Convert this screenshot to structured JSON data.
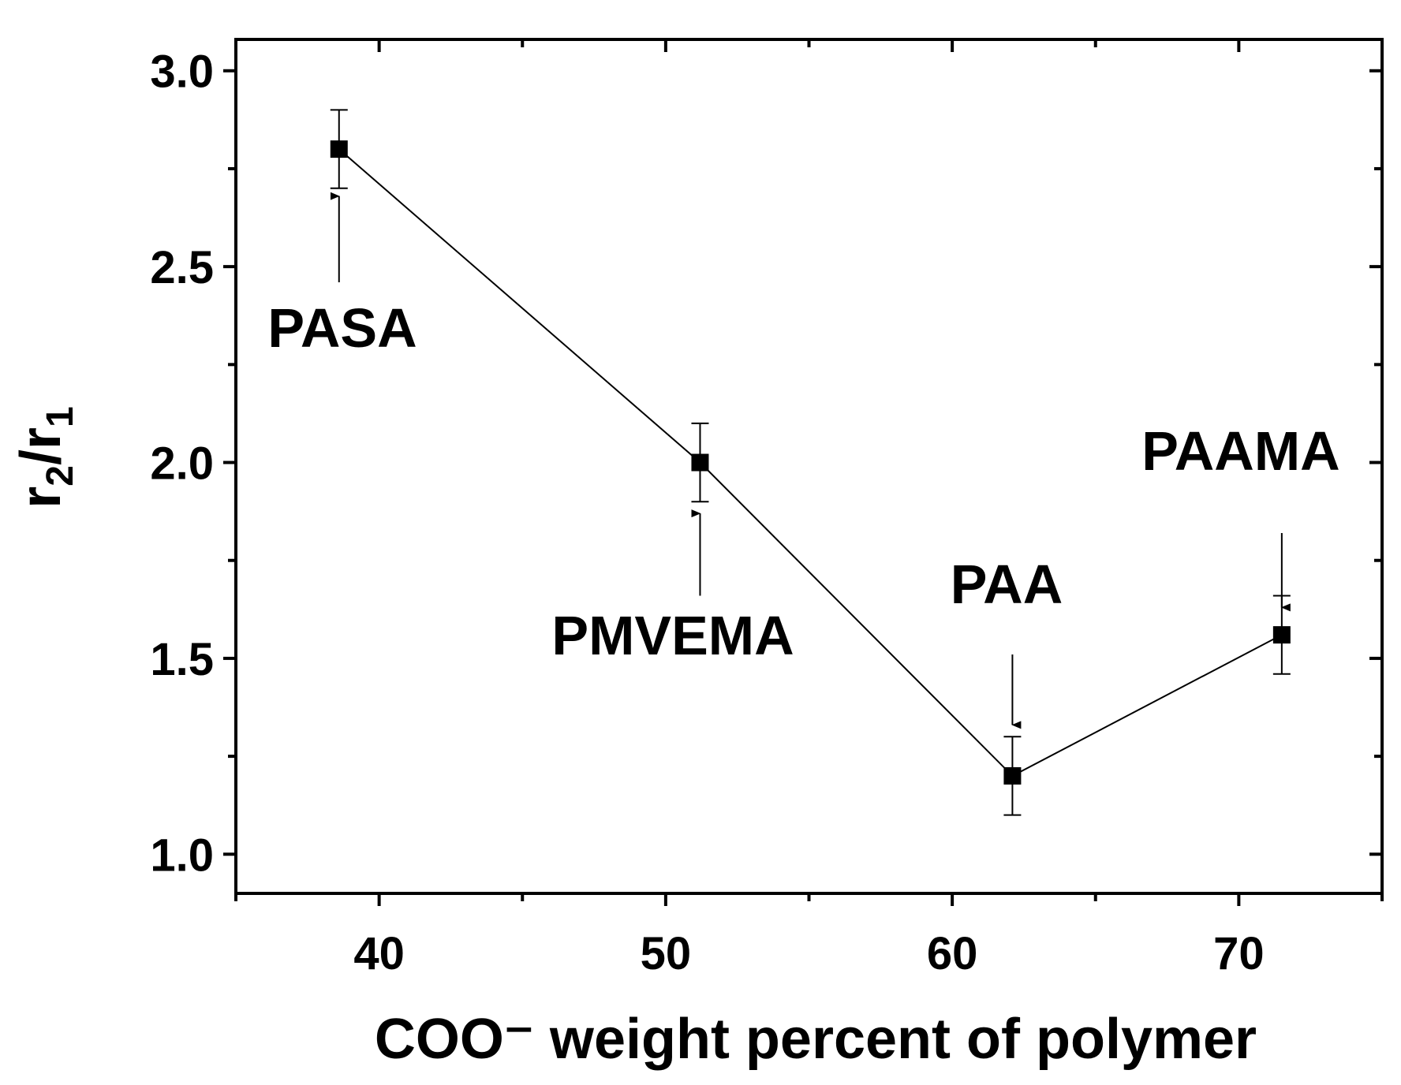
{
  "chart_data": {
    "type": "line",
    "title": "",
    "xlabel": "COO⁻ weight percent of polymer",
    "ylabel": "r2/r1",
    "ylabel_parts": {
      "a": "r",
      "a_sub": "2",
      "slash": "/",
      "b": "r",
      "b_sub": "1"
    },
    "xlim": [
      35,
      75
    ],
    "ylim": [
      0.9,
      3.08
    ],
    "x_ticks": [
      40,
      50,
      60,
      70
    ],
    "x_tick_labels": [
      "40",
      "50",
      "60",
      "70"
    ],
    "x_minor_ticks": [
      35,
      45,
      55,
      65,
      75
    ],
    "y_ticks": [
      1.0,
      1.5,
      2.0,
      2.5,
      3.0
    ],
    "y_tick_labels": [
      "1.0",
      "1.5",
      "2.0",
      "2.5",
      "3.0"
    ],
    "y_minor_ticks": [
      1.25,
      1.75,
      2.25,
      2.75
    ],
    "grid": false,
    "series": [
      {
        "name": "r2/r1",
        "marker": "square",
        "color": "#000000",
        "x": [
          38.6,
          51.2,
          62.1,
          71.5
        ],
        "y": [
          2.8,
          2.0,
          1.2,
          1.56
        ],
        "yerr": [
          0.1,
          0.1,
          0.1,
          0.1
        ]
      }
    ],
    "annotations": [
      {
        "text": "PASA",
        "point_index": 0,
        "arrow": "up"
      },
      {
        "text": "PMVEMA",
        "point_index": 1,
        "arrow": "up"
      },
      {
        "text": "PAA",
        "point_index": 2,
        "arrow": "down"
      },
      {
        "text": "PAAMA",
        "point_index": 3,
        "arrow": "down"
      }
    ]
  }
}
